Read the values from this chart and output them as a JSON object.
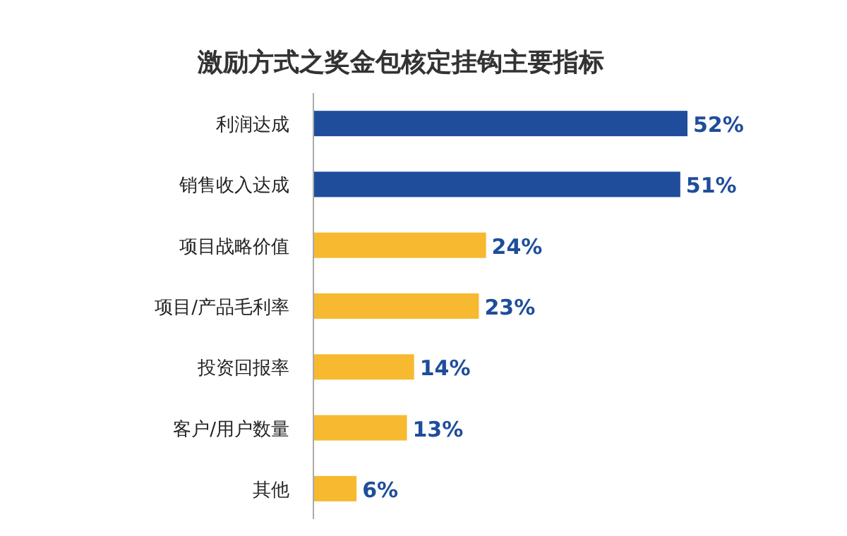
{
  "chart_data": {
    "type": "bar",
    "orientation": "horizontal",
    "title": "激励方式之奖金包核定挂钩主要指标",
    "categories": [
      "利润达成",
      "销售收入达成",
      "项目战略价值",
      "项目/产品毛利率",
      "投资回报率",
      "客户/用户数量",
      "其他"
    ],
    "values": [
      52,
      51,
      24,
      23,
      14,
      13,
      6
    ],
    "colors": [
      "#1f4d9b",
      "#1f4d9b",
      "#f6b92f",
      "#f6b92f",
      "#f6b92f",
      "#f6b92f",
      "#f6b92f"
    ],
    "value_labels": [
      "52%",
      "51%",
      "24%",
      "23%",
      "14%",
      "13%",
      "6%"
    ]
  }
}
